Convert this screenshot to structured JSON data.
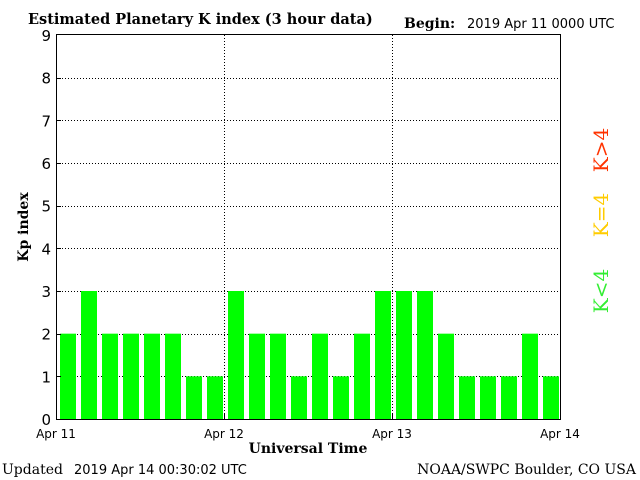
{
  "chart_data": {
    "type": "bar",
    "title": "Estimated Planetary K index (3 hour data)",
    "begin_label": "Begin:",
    "begin_value": "2019 Apr 11 0000 UTC",
    "xlabel": "Universal Time",
    "ylabel": "Kp index",
    "ylim": [
      0,
      9
    ],
    "yticks": [
      "0",
      "1",
      "2",
      "3",
      "4",
      "5",
      "6",
      "7",
      "8",
      "9"
    ],
    "xticks": [
      "Apr 11",
      "Apr 12",
      "Apr 13",
      "Apr 14"
    ],
    "grid": true,
    "bar_interval_hours": 3,
    "values": [
      2,
      3,
      2,
      2,
      2,
      2,
      1,
      1,
      3,
      2,
      2,
      1,
      2,
      1,
      2,
      3,
      3,
      3,
      2,
      1,
      1,
      1,
      2,
      1
    ],
    "bar_color": "#00ff00",
    "legend": [
      {
        "label": "K<4",
        "color": "#33ee33"
      },
      {
        "label": "K=4",
        "color": "#ffcc00"
      },
      {
        "label": "K>4",
        "color": "#ff3300"
      }
    ],
    "legend_placement": "right"
  },
  "footer": {
    "updated_label": "Updated",
    "updated_value": "2019 Apr 14 00:30:02 UTC",
    "source": "NOAA/SWPC Boulder, CO USA"
  }
}
